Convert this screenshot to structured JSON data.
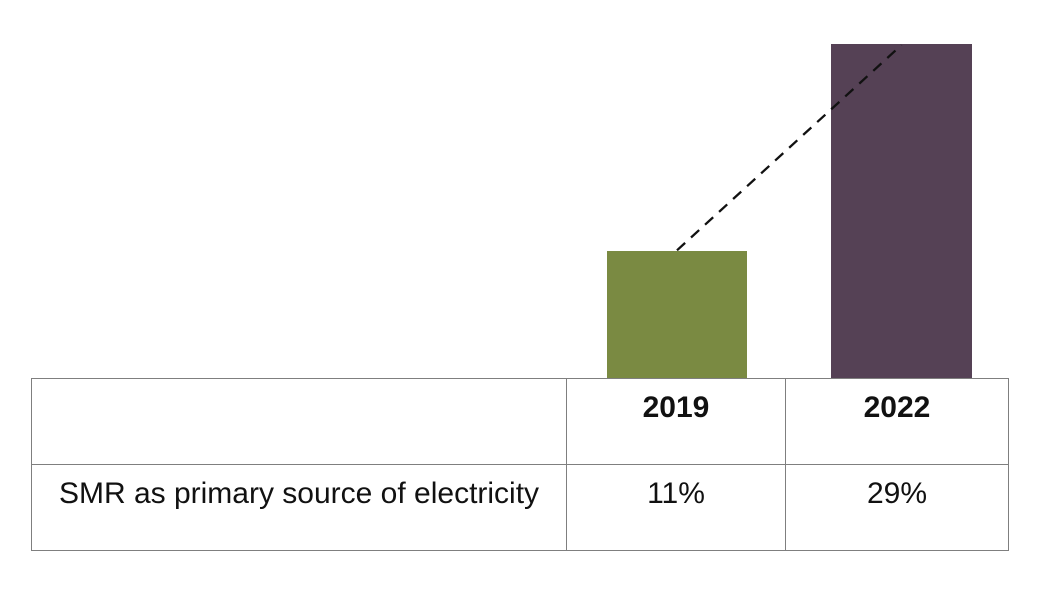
{
  "chart_data": {
    "type": "bar",
    "categories": [
      "2019",
      "2022"
    ],
    "series": [
      {
        "name": "SMR as primary source of electricity",
        "values": [
          11,
          29
        ],
        "unit": "%",
        "colors": [
          "#7A8A42",
          "#554155"
        ]
      }
    ],
    "value_labels": [
      "11%",
      "29%"
    ],
    "title": "",
    "xlabel": "",
    "ylabel": "",
    "axes_visible": false,
    "grid": false,
    "legend_position": "none",
    "annotations": [
      {
        "type": "dashed-connector-line",
        "from": "top center of 2019 bar",
        "to": "top center of 2022 bar",
        "style": "black dashed"
      }
    ],
    "table": {
      "row_label": "SMR as primary source of electricity",
      "columns": [
        "2019",
        "2022"
      ],
      "values": [
        "11%",
        "29%"
      ]
    }
  },
  "colors": {
    "bar_2019": "#7A8A42",
    "bar_2022": "#554155",
    "table_border": "#7F7F7F",
    "text": "#111111",
    "connector": "#111111",
    "background": "#FFFFFF"
  }
}
